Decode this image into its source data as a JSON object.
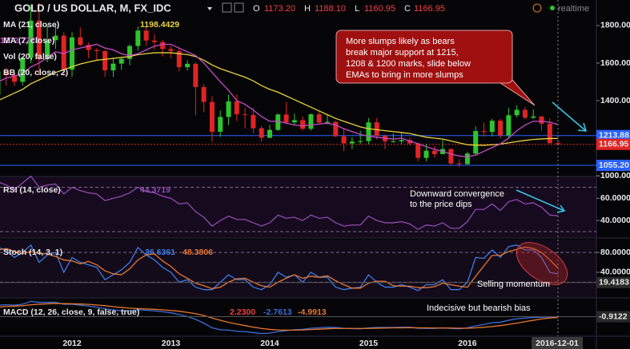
{
  "header": {
    "symbol": "GOLD / US DOLLAR, M, FX_IDC",
    "o_label": "O",
    "open": "1173.20",
    "h_label": "H",
    "high": "1188.10",
    "l_label": "L",
    "low": "1160.95",
    "c_label": "C",
    "close": "1166.95",
    "status": "realtime"
  },
  "chart_data": [
    {
      "type": "candlestick",
      "categories": [
        null,
        null,
        null,
        null,
        null,
        null,
        null,
        null,
        null,
        "2012",
        null,
        null,
        null,
        null,
        null,
        null,
        null,
        null,
        null,
        null,
        null,
        "2013",
        null,
        null,
        null,
        null,
        null,
        null,
        null,
        null,
        null,
        null,
        null,
        "2014",
        null,
        null,
        null,
        null,
        null,
        null,
        null,
        null,
        null,
        null,
        null,
        "2015",
        null,
        null,
        null,
        null,
        null,
        null,
        null,
        null,
        null,
        null,
        null,
        "2016",
        null,
        null,
        null,
        null,
        null,
        null,
        null,
        null,
        null,
        null,
        null
      ],
      "open": [
        1430,
        1556,
        1536,
        1500,
        1628,
        1826,
        1620,
        1722,
        1746,
        1565,
        1737,
        1697,
        1669,
        1664,
        1561,
        1597,
        1622,
        1691,
        1773,
        1720,
        1712,
        1675,
        1664,
        1578,
        1596,
        1472,
        1393,
        1234,
        1313,
        1396,
        1327,
        1323,
        1253,
        1202,
        1244,
        1326,
        1284,
        1296,
        1250,
        1327,
        1282,
        1287,
        1210,
        1172,
        1182,
        1184,
        1284,
        1213,
        1183,
        1183,
        1190,
        1172,
        1095,
        1133,
        1115,
        1142,
        1065,
        1061,
        1118,
        1238,
        1233,
        1293,
        1215,
        1322,
        1351,
        1309,
        1316,
        1277,
        1173.2
      ],
      "high": [
        1575,
        1577,
        1552,
        1632,
        1912,
        1921,
        1803,
        1803,
        1764,
        1764,
        1790,
        1710,
        1680,
        1670,
        1630,
        1630,
        1700,
        1795,
        1796,
        1755,
        1723,
        1693,
        1680,
        1615,
        1605,
        1488,
        1423,
        1348,
        1433,
        1434,
        1362,
        1361,
        1266,
        1270,
        1332,
        1392,
        1331,
        1315,
        1332,
        1345,
        1324,
        1292,
        1255,
        1206,
        1239,
        1307,
        1308,
        1220,
        1225,
        1232,
        1205,
        1175,
        1170,
        1160,
        1191,
        1145,
        1088,
        1128,
        1263,
        1282,
        1303,
        1304,
        1362,
        1375,
        1367,
        1354,
        1316,
        1306,
        1188.1
      ],
      "low": [
        1420,
        1480,
        1478,
        1480,
        1600,
        1535,
        1604,
        1675,
        1532,
        1527,
        1690,
        1627,
        1613,
        1527,
        1526,
        1564,
        1589,
        1666,
        1694,
        1672,
        1635,
        1626,
        1555,
        1560,
        1321,
        1338,
        1180,
        1207,
        1270,
        1292,
        1251,
        1226,
        1181,
        1200,
        1238,
        1276,
        1268,
        1240,
        1240,
        1280,
        1273,
        1205,
        1131,
        1142,
        1167,
        1168,
        1192,
        1141,
        1176,
        1169,
        1162,
        1077,
        1077,
        1097,
        1115,
        1056,
        1046,
        1061,
        1107,
        1208,
        1209,
        1200,
        1199,
        1310,
        1301,
        1302,
        1241,
        1171,
        1160.95
      ],
      "close": [
        1556,
        1536,
        1500,
        1628,
        1826,
        1620,
        1722,
        1746,
        1565,
        1737,
        1697,
        1669,
        1664,
        1561,
        1597,
        1622,
        1691,
        1773,
        1720,
        1712,
        1675,
        1664,
        1578,
        1596,
        1472,
        1393,
        1234,
        1313,
        1396,
        1327,
        1323,
        1253,
        1202,
        1244,
        1326,
        1284,
        1296,
        1250,
        1327,
        1282,
        1287,
        1210,
        1172,
        1182,
        1184,
        1284,
        1213,
        1183,
        1183,
        1190,
        1172,
        1095,
        1133,
        1115,
        1142,
        1065,
        1061,
        1118,
        1238,
        1233,
        1293,
        1215,
        1322,
        1351,
        1309,
        1316,
        1277,
        1173.2,
        1166.95
      ],
      "up_color": "#2ec42e",
      "down_color": "#e02424",
      "series": [
        {
          "name": "MA (21, close)",
          "color": "#e8d23a",
          "values": [
            1400,
            1420,
            1440,
            1460,
            1490,
            1510,
            1530,
            1550,
            1565,
            1580,
            1595,
            1605,
            1615,
            1620,
            1625,
            1630,
            1635,
            1645,
            1650,
            1655,
            1655,
            1655,
            1650,
            1645,
            1635,
            1615,
            1590,
            1570,
            1555,
            1540,
            1525,
            1505,
            1480,
            1460,
            1445,
            1425,
            1405,
            1385,
            1365,
            1345,
            1325,
            1305,
            1290,
            1275,
            1260,
            1250,
            1245,
            1240,
            1235,
            1230,
            1225,
            1215,
            1205,
            1200,
            1195,
            1185,
            1175,
            1165,
            1163,
            1162,
            1165,
            1168,
            1175,
            1182,
            1188,
            1193,
            1196,
            1198,
            1198.4429
          ]
        },
        {
          "name": "MA (7, close)",
          "color": "#c84ac8",
          "values": [
            1500,
            1520,
            1530,
            1545,
            1580,
            1600,
            1630,
            1660,
            1650,
            1670,
            1680,
            1690,
            1700,
            1680,
            1670,
            1650,
            1640,
            1650,
            1670,
            1690,
            1700,
            1700,
            1680,
            1660,
            1640,
            1600,
            1550,
            1500,
            1455,
            1400,
            1380,
            1350,
            1315,
            1290,
            1290,
            1280,
            1270,
            1265,
            1270,
            1275,
            1280,
            1270,
            1250,
            1235,
            1220,
            1210,
            1205,
            1200,
            1195,
            1200,
            1185,
            1170,
            1155,
            1140,
            1130,
            1115,
            1105,
            1100,
            1110,
            1130,
            1150,
            1170,
            1200,
            1240,
            1270,
            1290,
            1290,
            1285,
            1272.2771
          ]
        }
      ],
      "indicators": [
        "Vol (20, false)",
        "BB (20, close, 2)"
      ],
      "ylim": [
        1000,
        1936
      ],
      "yticks": [
        {
          "value": 1000,
          "label": "1000.00"
        },
        {
          "value": 1400,
          "label": "1400.00"
        },
        {
          "value": 1600,
          "label": "1600.00"
        },
        {
          "value": 1800,
          "label": "1800.00"
        }
      ],
      "price_lines": [
        1213.88,
        1166.95,
        {
          "value": 1055.2,
          "label": "1055.20"
        }
      ],
      "price_line_colors": [
        "#2962ff",
        "#e02424",
        "#2962ff"
      ]
    },
    {
      "type": "line",
      "title": "RSI (14, close)",
      "series": [
        {
          "color": "#8e4cb0",
          "values": [
            75,
            72,
            68,
            74,
            80,
            70,
            72,
            73,
            64,
            70,
            67,
            65,
            64,
            58,
            60,
            62,
            65,
            70,
            66,
            65,
            62,
            60,
            55,
            56,
            48,
            43,
            35,
            40,
            44,
            41,
            41,
            38,
            35,
            38,
            45,
            42,
            43,
            40,
            45,
            42,
            43,
            38,
            35,
            36,
            36,
            44,
            40,
            38,
            38,
            39,
            37,
            32,
            36,
            35,
            38,
            33,
            33,
            39,
            50,
            50,
            55,
            49,
            57,
            59,
            55,
            56,
            52,
            45,
            44.3719
          ]
        }
      ],
      "ylim": [
        25,
        79
      ],
      "yticks": [
        {
          "value": 40,
          "label": "40.0000"
        },
        {
          "value": 60,
          "label": "60.0000"
        }
      ],
      "bands": [
        70,
        30
      ]
    },
    {
      "type": "line",
      "title": "Stoch (14, 3, 1)",
      "series": [
        {
          "color": "#3a7ee8",
          "values": [
            90,
            85,
            70,
            80,
            95,
            60,
            75,
            80,
            40,
            70,
            60,
            55,
            50,
            25,
            35,
            45,
            60,
            90,
            75,
            65,
            50,
            40,
            20,
            25,
            10,
            5,
            5,
            20,
            35,
            25,
            25,
            10,
            5,
            15,
            40,
            30,
            35,
            20,
            40,
            30,
            30,
            10,
            5,
            8,
            10,
            35,
            20,
            10,
            10,
            15,
            10,
            3,
            15,
            15,
            25,
            5,
            5,
            20,
            70,
            68,
            85,
            70,
            92,
            95,
            85,
            85,
            70,
            40,
            36.6361
          ]
        },
        {
          "color": "#e8772e",
          "values": [
            85,
            88,
            82,
            78,
            82,
            78,
            77,
            72,
            65,
            63,
            57,
            62,
            55,
            43,
            37,
            35,
            47,
            65,
            75,
            77,
            63,
            52,
            37,
            28,
            18,
            13,
            7,
            10,
            20,
            27,
            28,
            20,
            13,
            10,
            20,
            28,
            35,
            28,
            32,
            30,
            33,
            23,
            15,
            8,
            8,
            18,
            22,
            22,
            13,
            12,
            12,
            9,
            9,
            11,
            18,
            15,
            12,
            10,
            32,
            53,
            74,
            74,
            82,
            86,
            91,
            88,
            80,
            65,
            48.3806
          ]
        }
      ],
      "ylim": [
        -10,
        106
      ],
      "yticks": [
        {
          "value": 40,
          "label": "40.0000"
        },
        {
          "value": 80,
          "label": "80.0000"
        }
      ],
      "bands": [
        80,
        20
      ],
      "marker": 19.4183
    },
    {
      "type": "line",
      "title": "MACD (12, 26, close, 9, false, true)",
      "histogram_readout": {
        "value": 2.23,
        "label": "2.2300"
      },
      "series": [
        {
          "color": "#3a6fd8",
          "values": [
            60,
            62,
            60,
            65,
            80,
            75,
            75,
            75,
            65,
            65,
            60,
            55,
            50,
            40,
            35,
            30,
            30,
            35,
            33,
            30,
            25,
            20,
            10,
            0,
            -15,
            -35,
            -60,
            -70,
            -72,
            -78,
            -80,
            -85,
            -90,
            -88,
            -80,
            -75,
            -70,
            -68,
            -62,
            -60,
            -57,
            -58,
            -62,
            -64,
            -65,
            -60,
            -58,
            -58,
            -58,
            -57,
            -57,
            -62,
            -63,
            -63,
            -60,
            -63,
            -65,
            -60,
            -50,
            -42,
            -33,
            -30,
            -20,
            -12,
            -8,
            -5,
            -4,
            -3,
            -2.7613
          ]
        },
        {
          "color": "#e8772e",
          "values": [
            50,
            53,
            55,
            57,
            62,
            65,
            67,
            69,
            68,
            67,
            66,
            64,
            61,
            57,
            52,
            48,
            44,
            42,
            40,
            38,
            35,
            32,
            28,
            22,
            15,
            5,
            -8,
            -20,
            -31,
            -40,
            -48,
            -56,
            -63,
            -68,
            -71,
            -72,
            -72,
            -71,
            -69,
            -67,
            -65,
            -63,
            -63,
            -63,
            -63,
            -63,
            -62,
            -61,
            -60,
            -60,
            -59,
            -60,
            -60,
            -61,
            -61,
            -61,
            -62,
            -62,
            -60,
            -57,
            -53,
            -48,
            -42,
            -35,
            -27,
            -20,
            -13,
            -8,
            -4.9913
          ]
        }
      ],
      "ylim": [
        -100,
        90
      ],
      "marker": -0.9122
    }
  ],
  "cursor_date": "2016-12-01",
  "annotations": {
    "callout": [
      "More slumps likely as bears",
      "break major support at 1215,",
      "1208 & 1200 marks, slide below",
      "EMAs to bring in more slumps"
    ],
    "rsi_note": [
      "Downward convergence",
      "to the price dips"
    ],
    "stoch_note": "Selling momentum",
    "macd_note": "Indecisive but bearish bias"
  }
}
